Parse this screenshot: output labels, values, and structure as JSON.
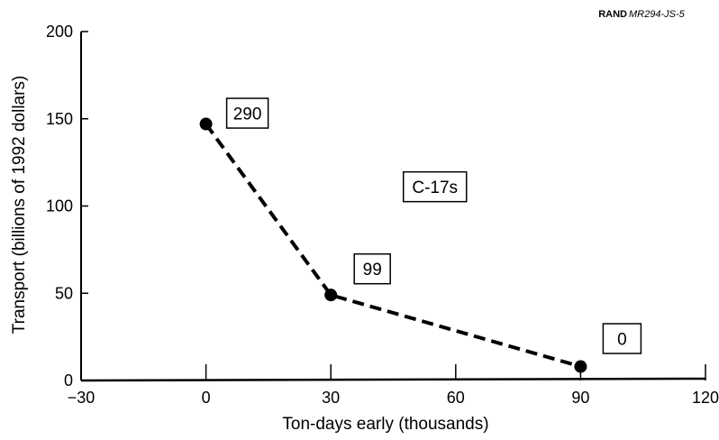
{
  "header": {
    "corner_label_bold": "RAND",
    "corner_label_italic": "MR294-JS-5"
  },
  "chart_data": {
    "type": "line",
    "xlabel": "Ton-days early (thousands)",
    "ylabel": "Transport (billions of 1992 dollars)",
    "xlim": [
      -30,
      120
    ],
    "ylim": [
      0,
      200
    ],
    "x_ticks": [
      -30,
      0,
      30,
      60,
      90,
      120
    ],
    "y_ticks": [
      0,
      50,
      100,
      150,
      200
    ],
    "grid": false,
    "series": [
      {
        "style": "dashed",
        "color": "#000000",
        "points": [
          {
            "x": 0,
            "y": 147,
            "label": "290"
          },
          {
            "x": 30,
            "y": 49,
            "label": "99"
          },
          {
            "x": 90,
            "y": 8,
            "label": "0"
          }
        ]
      }
    ],
    "annotations": [
      {
        "text": "C-17s",
        "x": 55,
        "y": 110
      }
    ]
  }
}
